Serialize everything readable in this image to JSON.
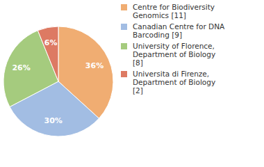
{
  "chart_data": {
    "type": "pie",
    "categories": [
      "Centre for Biodiversity Genomics [11]",
      "Canadian Centre for DNA Barcoding [9]",
      "University of Florence, Department of Biology [8]",
      "Universita di Firenze, Department of Biology [2]"
    ],
    "values": [
      36,
      30,
      26,
      6
    ],
    "value_labels": [
      "36%",
      "30%",
      "26%",
      "6%"
    ],
    "colors": [
      "#f0ad72",
      "#a2bde3",
      "#a5cb7e",
      "#dd7a63"
    ],
    "data_labels": true,
    "legend": "top-right"
  }
}
